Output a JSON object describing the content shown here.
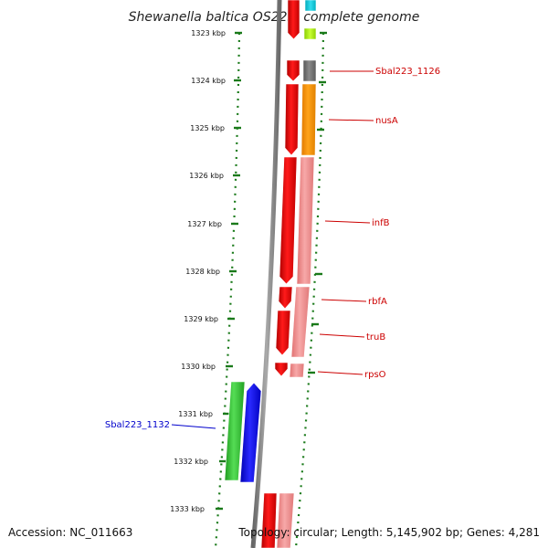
{
  "title": "Shewanella baltica OS223, complete genome",
  "accession": "Accession: NC_011663",
  "summary": "Topology: circular; Length: 5,145,902 bp; Genes: 4,281",
  "ticks": [
    "1323 kbp",
    "1324 kbp",
    "1325 kbp",
    "1326 kbp",
    "1327 kbp",
    "1328 kbp",
    "1329 kbp",
    "1330 kbp",
    "1331 kbp",
    "1332 kbp",
    "1333 kbp"
  ],
  "gene_labels": [
    {
      "id": "sbal223-1126",
      "text": "Sbal223_1126",
      "color": "#cc0000"
    },
    {
      "id": "nusa",
      "text": "nusA",
      "color": "#cc0000"
    },
    {
      "id": "infb",
      "text": "infB",
      "color": "#cc0000"
    },
    {
      "id": "rbfa",
      "text": "rbfA",
      "color": "#cc0000"
    },
    {
      "id": "trub",
      "text": "truB",
      "color": "#cc0000"
    },
    {
      "id": "rpso",
      "text": "rpsO",
      "color": "#cc0000"
    },
    {
      "id": "sbal223-1132",
      "text": "Sbal223_1132",
      "color": "#0000cc"
    }
  ],
  "colors": {
    "backbone": "#808080",
    "forward_strand": "#ee0000",
    "pink_track": "#f08a8a",
    "tick_color": "#1a7a1a",
    "green_track": "#33bb33",
    "blue_track": "#0000ee"
  }
}
